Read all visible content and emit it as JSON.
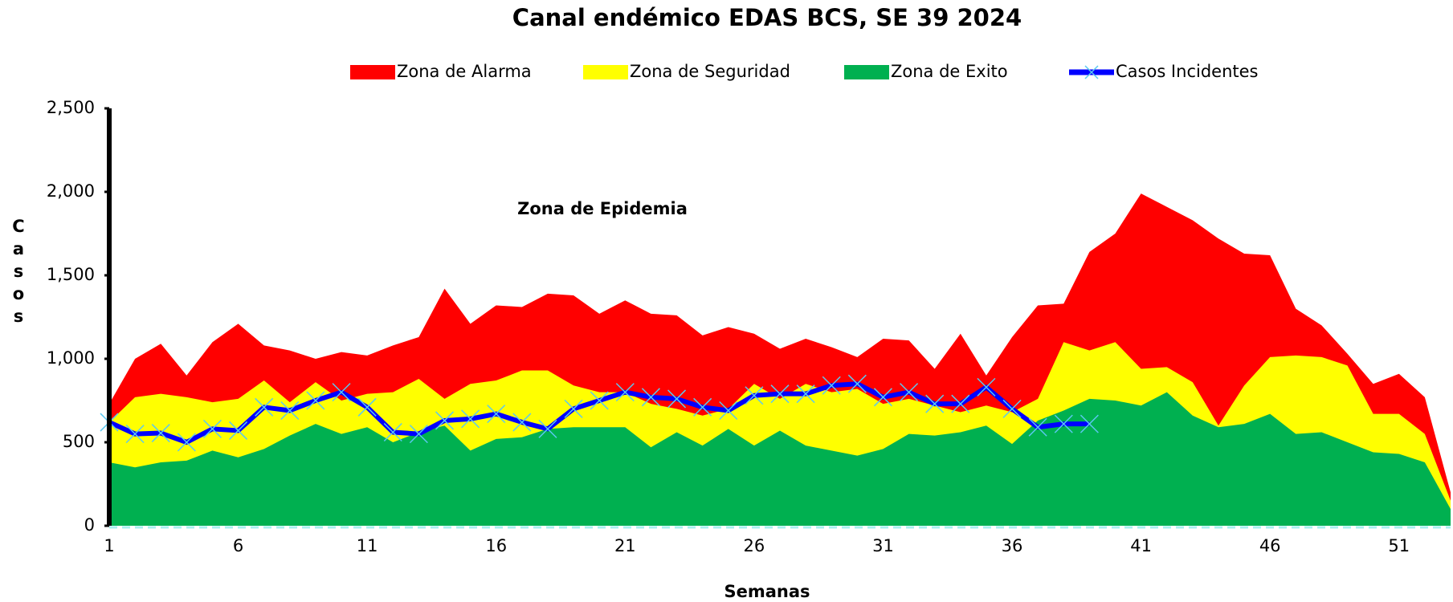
{
  "chart_data": {
    "type": "area",
    "title": "Canal endémico EDAS BCS, SE 39 2024",
    "xlabel": "Semanas",
    "ylabel": "Casos",
    "annotation": "Zona de Epidemia",
    "legend": "top",
    "x": [
      1,
      2,
      3,
      4,
      5,
      6,
      7,
      8,
      9,
      10,
      11,
      12,
      13,
      14,
      15,
      16,
      17,
      18,
      19,
      20,
      21,
      22,
      23,
      24,
      25,
      26,
      27,
      28,
      29,
      30,
      31,
      32,
      33,
      34,
      35,
      36,
      37,
      38,
      39,
      40,
      41,
      42,
      43,
      44,
      45,
      46,
      47,
      48,
      49,
      50,
      51,
      52,
      53
    ],
    "xlim": [
      1,
      53
    ],
    "xticks": [
      1,
      6,
      11,
      16,
      21,
      26,
      31,
      36,
      41,
      46,
      51
    ],
    "ylim": [
      0,
      2500
    ],
    "yticks": [
      0,
      500,
      {
        "value": 1000,
        "label": "1,000"
      },
      {
        "value": 1500,
        "label": "1,500"
      },
      {
        "value": 2000,
        "label": "2,000"
      },
      {
        "value": 2500,
        "label": "2,500"
      }
    ],
    "series": [
      {
        "name": "Zona de Alarma",
        "color": "#ff0000",
        "values": [
          730,
          1000,
          1090,
          900,
          1100,
          1210,
          1080,
          1050,
          1000,
          1040,
          1020,
          1080,
          1130,
          1420,
          1210,
          1320,
          1310,
          1390,
          1380,
          1270,
          1350,
          1270,
          1260,
          1140,
          1190,
          1150,
          1060,
          1120,
          1070,
          1010,
          1120,
          1110,
          940,
          1150,
          900,
          1130,
          1320,
          1330,
          1640,
          1750,
          1990,
          1910,
          1830,
          1720,
          1630,
          1620,
          1300,
          1200,
          1030,
          850,
          910,
          770,
          200
        ]
      },
      {
        "name": "Zona de Seguridad",
        "color": "#ffff00",
        "values": [
          620,
          770,
          790,
          770,
          740,
          760,
          870,
          740,
          860,
          750,
          790,
          800,
          880,
          760,
          850,
          870,
          930,
          930,
          840,
          800,
          800,
          730,
          700,
          660,
          700,
          850,
          760,
          850,
          800,
          820,
          730,
          760,
          720,
          680,
          720,
          680,
          760,
          1100,
          1050,
          1100,
          940,
          950,
          860,
          600,
          840,
          1010,
          1020,
          1010,
          960,
          670,
          670,
          550,
          150
        ]
      },
      {
        "name": "Zona de Exito",
        "color": "#00b050",
        "values": [
          380,
          350,
          380,
          390,
          450,
          410,
          460,
          540,
          610,
          550,
          590,
          500,
          560,
          600,
          450,
          520,
          530,
          580,
          590,
          590,
          590,
          470,
          560,
          480,
          580,
          480,
          570,
          480,
          450,
          420,
          460,
          550,
          540,
          560,
          600,
          490,
          630,
          690,
          760,
          750,
          720,
          800,
          660,
          590,
          610,
          670,
          550,
          560,
          500,
          440,
          430,
          380,
          100
        ]
      },
      {
        "name": "Casos Incidentes",
        "color": "#0000ff",
        "marker_color": "#5bc8f0",
        "type": "line",
        "values": [
          620,
          550,
          555,
          500,
          580,
          570,
          710,
          690,
          750,
          800,
          710,
          560,
          550,
          630,
          640,
          670,
          620,
          580,
          700,
          750,
          800,
          770,
          760,
          710,
          690,
          780,
          790,
          790,
          840,
          850,
          770,
          800,
          730,
          730,
          830,
          700,
          590,
          610,
          610,
          null,
          null,
          null,
          null,
          null,
          null,
          null,
          null,
          null,
          null,
          null,
          null,
          null,
          null
        ]
      }
    ]
  }
}
